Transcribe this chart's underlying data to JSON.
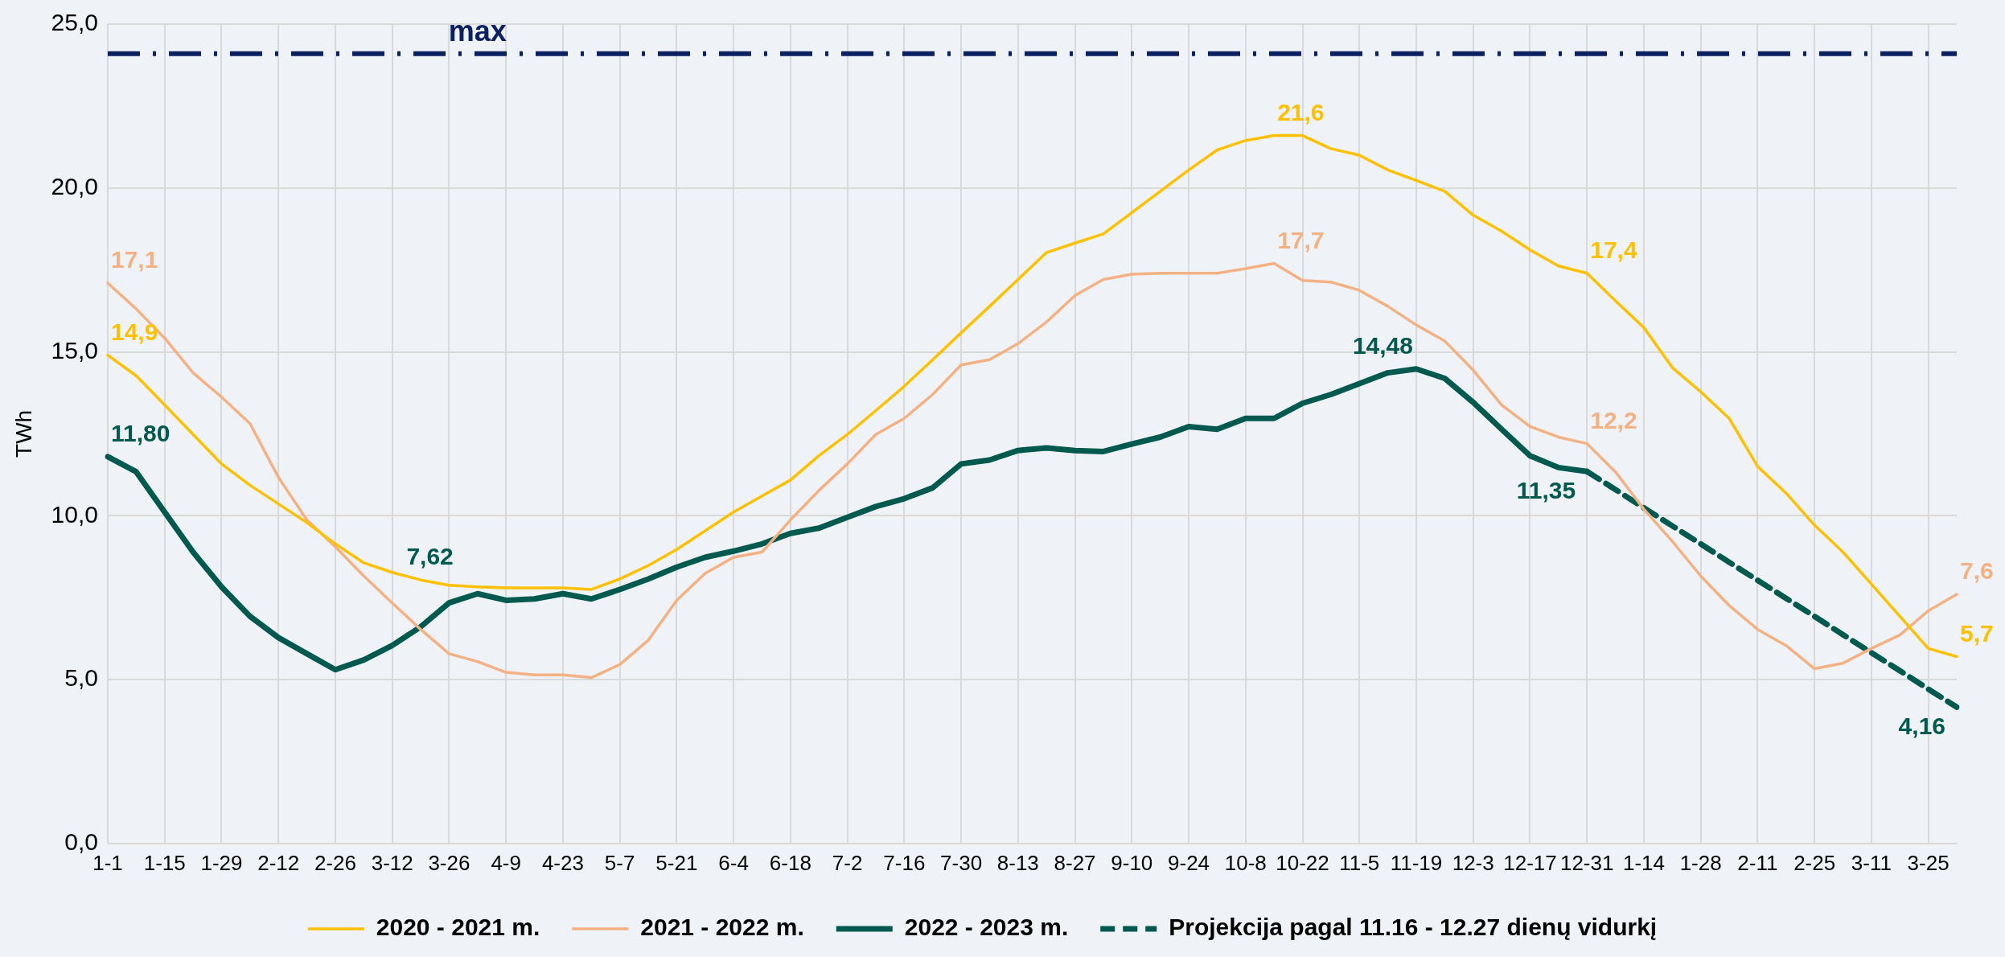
{
  "chart_data": {
    "type": "line",
    "ylabel": "TWh",
    "categories": [
      "1-1",
      null,
      "1-15",
      null,
      "1-29",
      null,
      "2-12",
      null,
      "2-26",
      null,
      "3-12",
      null,
      "3-26",
      null,
      "4-9",
      null,
      "4-23",
      null,
      "5-7",
      null,
      "5-21",
      null,
      "6-4",
      null,
      "6-18",
      null,
      "7-2",
      null,
      "7-16",
      null,
      "7-30",
      null,
      "8-13",
      null,
      "8-27",
      null,
      "9-10",
      null,
      "9-24",
      null,
      "10-8",
      null,
      "10-22",
      null,
      "11-5",
      null,
      "11-19",
      null,
      "12-3",
      null,
      "12-17",
      null,
      "12-31",
      null,
      "1-14",
      null,
      "1-28",
      null,
      "2-11",
      null,
      "2-25",
      null,
      "3-11",
      null,
      "3-25",
      null
    ],
    "series": [
      {
        "name": "2020 - 2021 m.",
        "color": "#ffc000",
        "values": [
          14.9,
          14.27,
          13.38,
          12.48,
          11.58,
          10.93,
          10.36,
          9.79,
          9.14,
          8.56,
          8.27,
          8.04,
          7.88,
          7.83,
          7.8,
          7.8,
          7.8,
          7.75,
          8.07,
          8.48,
          8.97,
          9.54,
          10.11,
          10.6,
          11.09,
          11.83,
          12.48,
          13.21,
          13.95,
          14.76,
          15.58,
          16.39,
          17.21,
          18.03,
          18.32,
          18.6,
          19.25,
          19.9,
          20.55,
          21.16,
          21.45,
          21.6,
          21.6,
          21.2,
          21.0,
          20.55,
          20.23,
          19.9,
          19.17,
          18.68,
          18.11,
          17.62,
          17.4,
          16.56,
          15.74,
          14.52,
          13.78,
          12.97,
          11.5,
          10.69,
          9.71,
          8.89,
          7.91,
          6.93,
          5.95,
          5.7
        ],
        "value_labels": [
          "14,9",
          null,
          null,
          null,
          null,
          null,
          null,
          null,
          null,
          null,
          null,
          null,
          null,
          null,
          null,
          null,
          null,
          null,
          null,
          null,
          null,
          null,
          null,
          null,
          null,
          null,
          null,
          null,
          null,
          null,
          null,
          null,
          null,
          null,
          null,
          null,
          null,
          null,
          null,
          null,
          null,
          "21,6",
          null,
          null,
          null,
          null,
          null,
          null,
          null,
          null,
          null,
          null,
          "17,4",
          null,
          null,
          null,
          null,
          null,
          null,
          null,
          null,
          null,
          null,
          null,
          null,
          "5,7"
        ]
      },
      {
        "name": "2021 - 2022 m.",
        "color": "#f4b183",
        "values": [
          17.1,
          16.31,
          15.42,
          14.36,
          13.62,
          12.81,
          11.17,
          9.87,
          9.05,
          8.16,
          7.34,
          6.53,
          5.79,
          5.55,
          5.22,
          5.14,
          5.14,
          5.06,
          5.46,
          6.2,
          7.42,
          8.24,
          8.73,
          8.89,
          9.87,
          10.77,
          11.58,
          12.48,
          12.97,
          13.7,
          14.6,
          14.76,
          15.25,
          15.91,
          16.72,
          17.21,
          17.37,
          17.4,
          17.4,
          17.4,
          17.54,
          17.7,
          17.18,
          17.13,
          16.88,
          16.39,
          15.82,
          15.33,
          14.44,
          13.38,
          12.72,
          12.4,
          12.2,
          11.34,
          10.2,
          9.22,
          8.16,
          7.26,
          6.53,
          6.04,
          5.33,
          5.5,
          5.95,
          6.36,
          7.1,
          7.6
        ],
        "value_labels": [
          "17,1",
          null,
          null,
          null,
          null,
          null,
          null,
          null,
          null,
          null,
          null,
          null,
          null,
          null,
          null,
          null,
          null,
          null,
          null,
          null,
          null,
          null,
          null,
          null,
          null,
          null,
          null,
          null,
          null,
          null,
          null,
          null,
          null,
          null,
          null,
          null,
          null,
          null,
          null,
          null,
          null,
          "17,7",
          null,
          null,
          null,
          null,
          null,
          null,
          null,
          null,
          null,
          null,
          "12,2",
          null,
          null,
          null,
          null,
          null,
          null,
          null,
          null,
          null,
          null,
          null,
          null,
          "7,6"
        ]
      },
      {
        "name": "2022 - 2023 m.",
        "color": "#00594f",
        "values": [
          11.8,
          11.34,
          10.11,
          8.89,
          7.83,
          6.93,
          6.28,
          5.79,
          5.3,
          5.6,
          6.04,
          6.61,
          7.34,
          7.62,
          7.42,
          7.46,
          7.62,
          7.46,
          7.75,
          8.07,
          8.43,
          8.73,
          8.92,
          9.14,
          9.46,
          9.62,
          9.95,
          10.28,
          10.52,
          10.85,
          11.58,
          11.7,
          11.99,
          12.07,
          11.99,
          11.96,
          12.19,
          12.4,
          12.72,
          12.64,
          12.97,
          12.97,
          13.43,
          13.7,
          14.03,
          14.36,
          14.48,
          14.19,
          13.46,
          12.64,
          11.83,
          11.47,
          11.35,
          null,
          null,
          null,
          null,
          null,
          null,
          null,
          null,
          null,
          null,
          null,
          null,
          null
        ],
        "value_labels": [
          "11,80",
          null,
          null,
          null,
          null,
          null,
          null,
          null,
          null,
          null,
          null,
          null,
          null,
          "7,62",
          null,
          null,
          null,
          null,
          null,
          null,
          null,
          null,
          null,
          null,
          null,
          null,
          null,
          null,
          null,
          null,
          null,
          null,
          null,
          null,
          null,
          null,
          null,
          null,
          null,
          null,
          null,
          null,
          null,
          null,
          null,
          null,
          "14,48",
          null,
          null,
          null,
          null,
          null,
          "11,35",
          null,
          null,
          null,
          null,
          null,
          null,
          null,
          null,
          null,
          null,
          null,
          null,
          null
        ]
      },
      {
        "name": "Projekcija pagal 11.16 - 12.27 dienų vidurkį",
        "color": "#00594f",
        "line_style": "dashed",
        "values": [
          null,
          null,
          null,
          null,
          null,
          null,
          null,
          null,
          null,
          null,
          null,
          null,
          null,
          null,
          null,
          null,
          null,
          null,
          null,
          null,
          null,
          null,
          null,
          null,
          null,
          null,
          null,
          null,
          null,
          null,
          null,
          null,
          null,
          null,
          null,
          null,
          null,
          null,
          null,
          null,
          null,
          null,
          null,
          null,
          null,
          null,
          null,
          null,
          null,
          null,
          null,
          null,
          11.35,
          10.8,
          10.24,
          9.69,
          9.14,
          8.58,
          8.03,
          7.48,
          6.93,
          6.37,
          5.82,
          5.27,
          4.71,
          4.16
        ],
        "value_labels": [
          null,
          null,
          null,
          null,
          null,
          null,
          null,
          null,
          null,
          null,
          null,
          null,
          null,
          null,
          null,
          null,
          null,
          null,
          null,
          null,
          null,
          null,
          null,
          null,
          null,
          null,
          null,
          null,
          null,
          null,
          null,
          null,
          null,
          null,
          null,
          null,
          null,
          null,
          null,
          null,
          null,
          null,
          null,
          null,
          null,
          null,
          null,
          null,
          null,
          null,
          null,
          null,
          null,
          null,
          null,
          null,
          null,
          null,
          null,
          null,
          null,
          null,
          null,
          null,
          null,
          "4,16"
        ]
      }
    ],
    "ylim": [
      0,
      25
    ],
    "yticks": [
      {
        "value": 0,
        "label": "0,0"
      },
      {
        "value": 5,
        "label": "5,0"
      },
      {
        "value": 10,
        "label": "10,0"
      },
      {
        "value": 15,
        "label": "15,0"
      },
      {
        "value": 20,
        "label": "20,0"
      },
      {
        "value": 25,
        "label": "25,0"
      }
    ],
    "ref_lines": [
      {
        "axis": "y",
        "value": 24.1,
        "label": "max",
        "color": "#0b2161",
        "line_style": "dashdot"
      }
    ],
    "grid": true,
    "legend": "bottom",
    "marker": "none",
    "line_style": "solid"
  }
}
